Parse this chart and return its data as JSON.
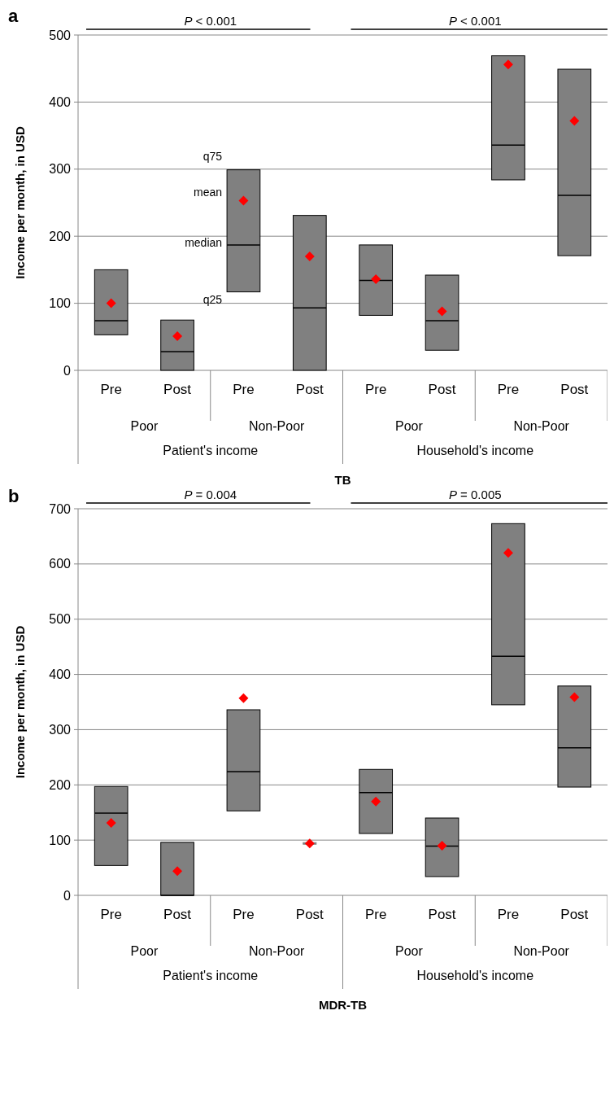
{
  "chart_data": [
    {
      "type": "box",
      "title": "a",
      "xlabel": "TB",
      "ylabel": "Income per month, in USD",
      "categories": [
        "Pre",
        "Post",
        "Pre",
        "Post",
        "Pre",
        "Post",
        "Pre",
        "Post"
      ],
      "ylim": [
        0,
        500
      ],
      "yticks": [
        0,
        100,
        200,
        300,
        400,
        500
      ],
      "grid": "y",
      "marker": "diamond",
      "series": [
        {
          "color": "#808080",
          "boxes": [
            {
              "low": 53,
              "q1": 53,
              "median": 74,
              "q3": 150,
              "high": 150,
              "mean": 100
            },
            {
              "low": 0,
              "q1": 0,
              "median": 28,
              "q3": 75,
              "high": 75,
              "mean": 51
            },
            {
              "low": 117,
              "q1": 117,
              "median": 187,
              "q3": 299,
              "high": 299,
              "mean": 253
            },
            {
              "low": 0,
              "q1": 0,
              "median": 93,
              "q3": 231,
              "high": 231,
              "mean": 170
            },
            {
              "low": 82,
              "q1": 82,
              "median": 134,
              "q3": 187,
              "high": 187,
              "mean": 136
            },
            {
              "low": 30,
              "q1": 30,
              "median": 74,
              "q3": 142,
              "high": 142,
              "mean": 88
            },
            {
              "low": 284,
              "q1": 284,
              "median": 336,
              "q3": 469,
              "high": 469,
              "mean": 456
            },
            {
              "low": 171,
              "q1": 171,
              "median": 261,
              "q3": 449,
              "high": 449,
              "mean": 372
            }
          ]
        }
      ],
      "annotations": [
        "P < 0.001",
        "P < 0.001",
        "Poor",
        "Non-Poor",
        "Poor",
        "Non-Poor",
        "Patient's income",
        "Household's income",
        "q75",
        "mean",
        "median",
        "q25"
      ]
    },
    {
      "type": "box",
      "title": "b",
      "xlabel": "MDR-TB",
      "ylabel": "Income per month, in USD",
      "categories": [
        "Pre",
        "Post",
        "Pre",
        "Post",
        "Pre",
        "Post",
        "Pre",
        "Post"
      ],
      "ylim": [
        0,
        700
      ],
      "yticks": [
        0,
        100,
        200,
        300,
        400,
        500,
        600,
        700
      ],
      "grid": "y",
      "marker": "diamond",
      "series": [
        {
          "color": "#808080",
          "boxes": [
            {
              "low": 54,
              "q1": 54,
              "median": 149,
              "q3": 197,
              "high": 197,
              "mean": 131
            },
            {
              "low": 0,
              "q1": 0,
              "median": 0,
              "q3": 96,
              "high": 96,
              "mean": 44
            },
            {
              "low": 153,
              "q1": 153,
              "median": 224,
              "q3": 336,
              "high": 336,
              "mean": 357
            },
            {
              "low": 94,
              "q1": 94,
              "median": 94,
              "q3": 94,
              "high": 94,
              "mean": 94
            },
            {
              "low": 112,
              "q1": 112,
              "median": 186,
              "q3": 228,
              "high": 228,
              "mean": 170
            },
            {
              "low": 34,
              "q1": 34,
              "median": 89,
              "q3": 140,
              "high": 140,
              "mean": 90
            },
            {
              "low": 345,
              "q1": 345,
              "median": 433,
              "q3": 673,
              "high": 673,
              "mean": 620
            },
            {
              "low": 196,
              "q1": 196,
              "median": 267,
              "q3": 379,
              "high": 379,
              "mean": 359
            }
          ]
        }
      ],
      "annotations": [
        "P = 0.004",
        "P = 0.005",
        "Poor",
        "Non-Poor",
        "Poor",
        "Non-Poor",
        "Patient's income",
        "Household's income"
      ]
    }
  ]
}
